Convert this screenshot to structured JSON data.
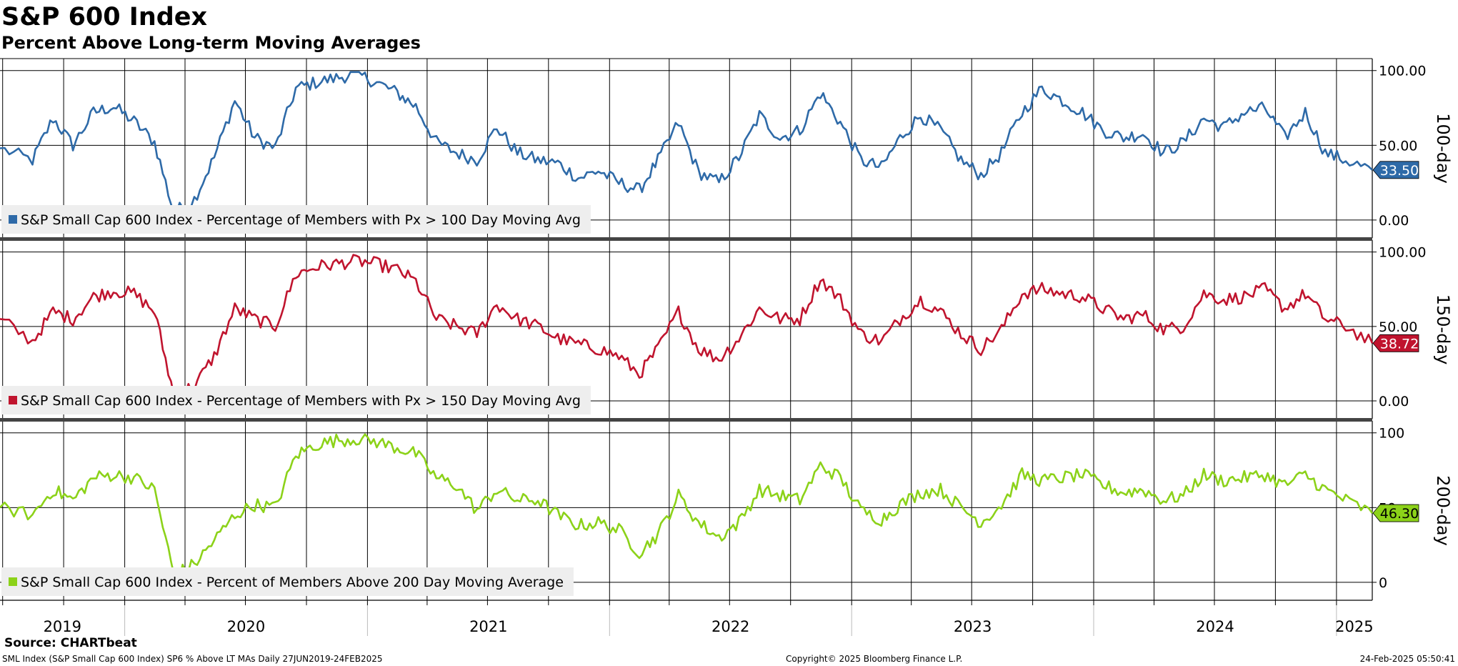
{
  "header": {
    "title": "S&P 600 Index",
    "subtitle": "Percent Above Long-term Moving Averages"
  },
  "footer": {
    "source": "Source: CHARTbeat",
    "security": "SML Index (S&P Small Cap 600 Index) SP6 % Above LT MAs  Daily 27JUN2019-24FEB2025",
    "copyright": "Copyright© 2025 Bloomberg Finance L.P.",
    "timestamp": "24-Feb-2025 05:50:41"
  },
  "chart_data": [
    {
      "type": "line",
      "panel_label": "100-day",
      "ylim": [
        -12,
        108
      ],
      "yticks": [
        "0.00",
        "50.00",
        "100.00"
      ],
      "ytick_values": [
        0,
        50,
        100
      ],
      "grid": true,
      "legend": "bottom-left",
      "last_value_label": "33.50",
      "color": "#2e6aa8",
      "series": [
        {
          "name": "S&P Small Cap 600 Index - Percentage of Members with Px > 100 Day Moving Avg",
          "x": [
            "2019-06",
            "2019-08",
            "2019-09",
            "2019-10",
            "2019-11",
            "2019-12",
            "2020-01",
            "2020-02",
            "2020-03",
            "2020-04",
            "2020-05",
            "2020-06",
            "2020-07",
            "2020-08",
            "2020-09",
            "2020-10",
            "2020-11",
            "2020-12",
            "2021-01",
            "2021-02",
            "2021-03",
            "2021-04",
            "2021-05",
            "2021-06",
            "2021-07",
            "2021-08",
            "2021-09",
            "2021-10",
            "2021-11",
            "2021-12",
            "2022-01",
            "2022-02",
            "2022-03",
            "2022-04",
            "2022-05",
            "2022-06",
            "2022-07",
            "2022-08",
            "2022-09",
            "2022-10",
            "2022-11",
            "2022-12",
            "2023-01",
            "2023-02",
            "2023-03",
            "2023-04",
            "2023-05",
            "2023-06",
            "2023-07",
            "2023-08",
            "2023-09",
            "2023-10",
            "2023-11",
            "2023-12",
            "2024-01",
            "2024-02",
            "2024-03",
            "2024-04",
            "2024-05",
            "2024-06",
            "2024-07",
            "2024-08",
            "2024-09",
            "2024-10",
            "2024-11",
            "2024-12",
            "2025-01",
            "2025-02"
          ],
          "values": [
            48,
            40,
            68,
            50,
            72,
            76,
            66,
            52,
            5,
            14,
            42,
            80,
            55,
            48,
            88,
            92,
            95,
            98,
            92,
            85,
            76,
            52,
            45,
            40,
            62,
            45,
            40,
            38,
            28,
            33,
            25,
            20,
            40,
            65,
            32,
            25,
            42,
            70,
            55,
            60,
            85,
            65,
            40,
            35,
            55,
            70,
            60,
            40,
            30,
            45,
            72,
            88,
            80,
            72,
            60,
            55,
            58,
            45,
            52,
            68,
            62,
            72,
            75,
            55,
            72,
            45,
            40,
            33.5
          ]
        }
      ]
    },
    {
      "type": "line",
      "panel_label": "150-day",
      "ylim": [
        -12,
        108
      ],
      "yticks": [
        "0.00",
        "50.00",
        "100.00"
      ],
      "ytick_values": [
        0,
        50,
        100
      ],
      "grid": true,
      "legend": "bottom-left",
      "last_value_label": "38.72",
      "color": "#c0142e",
      "series": [
        {
          "name": "S&P Small Cap 600 Index - Percentage of Members with Px > 150 Day Moving Avg",
          "x": [
            "2019-06",
            "2019-08",
            "2019-09",
            "2019-10",
            "2019-11",
            "2019-12",
            "2020-01",
            "2020-02",
            "2020-03",
            "2020-04",
            "2020-05",
            "2020-06",
            "2020-07",
            "2020-08",
            "2020-09",
            "2020-10",
            "2020-11",
            "2020-12",
            "2021-01",
            "2021-02",
            "2021-03",
            "2021-04",
            "2021-05",
            "2021-06",
            "2021-07",
            "2021-08",
            "2021-09",
            "2021-10",
            "2021-11",
            "2021-12",
            "2022-01",
            "2022-02",
            "2022-03",
            "2022-04",
            "2022-05",
            "2022-06",
            "2022-07",
            "2022-08",
            "2022-09",
            "2022-10",
            "2022-11",
            "2022-12",
            "2023-01",
            "2023-02",
            "2023-03",
            "2023-04",
            "2023-05",
            "2023-06",
            "2023-07",
            "2023-08",
            "2023-09",
            "2023-10",
            "2023-11",
            "2023-12",
            "2024-01",
            "2024-02",
            "2024-03",
            "2024-04",
            "2024-05",
            "2024-06",
            "2024-07",
            "2024-08",
            "2024-09",
            "2024-10",
            "2024-11",
            "2024-12",
            "2025-01",
            "2025-02"
          ],
          "values": [
            55,
            40,
            60,
            55,
            70,
            74,
            72,
            60,
            4,
            10,
            30,
            62,
            55,
            50,
            85,
            90,
            92,
            94,
            92,
            88,
            80,
            55,
            50,
            45,
            65,
            55,
            50,
            42,
            38,
            35,
            30,
            18,
            35,
            60,
            35,
            28,
            42,
            62,
            55,
            55,
            82,
            68,
            45,
            40,
            55,
            68,
            60,
            45,
            35,
            48,
            72,
            75,
            72,
            70,
            62,
            55,
            58,
            48,
            50,
            72,
            68,
            70,
            75,
            62,
            72,
            55,
            50,
            38.72
          ]
        }
      ]
    },
    {
      "type": "line",
      "panel_label": "200-day",
      "ylim": [
        -12,
        108
      ],
      "yticks": [
        "0",
        "50",
        "100"
      ],
      "ytick_values": [
        0,
        50,
        100
      ],
      "grid": true,
      "legend": "bottom-left",
      "last_value_label": "46.30",
      "color": "#8cd219",
      "series": [
        {
          "name": "S&P Small Cap 600 Index - Percent of Members Above 200 Day Moving Average",
          "x": [
            "2019-06",
            "2019-08",
            "2019-09",
            "2019-10",
            "2019-11",
            "2019-12",
            "2020-01",
            "2020-02",
            "2020-03",
            "2020-04",
            "2020-05",
            "2020-06",
            "2020-07",
            "2020-08",
            "2020-09",
            "2020-10",
            "2020-11",
            "2020-12",
            "2021-01",
            "2021-02",
            "2021-03",
            "2021-04",
            "2021-05",
            "2021-06",
            "2021-07",
            "2021-08",
            "2021-09",
            "2021-10",
            "2021-11",
            "2021-12",
            "2022-01",
            "2022-02",
            "2022-03",
            "2022-04",
            "2022-05",
            "2022-06",
            "2022-07",
            "2022-08",
            "2022-09",
            "2022-10",
            "2022-11",
            "2022-12",
            "2023-01",
            "2023-02",
            "2023-03",
            "2023-04",
            "2023-05",
            "2023-06",
            "2023-07",
            "2023-08",
            "2023-09",
            "2023-10",
            "2023-11",
            "2023-12",
            "2024-01",
            "2024-02",
            "2024-03",
            "2024-04",
            "2024-05",
            "2024-06",
            "2024-07",
            "2024-08",
            "2024-09",
            "2024-10",
            "2024-11",
            "2024-12",
            "2025-01",
            "2025-02"
          ],
          "values": [
            50,
            45,
            62,
            55,
            70,
            72,
            70,
            62,
            5,
            12,
            28,
            45,
            52,
            50,
            85,
            92,
            95,
            96,
            94,
            90,
            86,
            70,
            65,
            48,
            62,
            55,
            55,
            45,
            38,
            40,
            35,
            20,
            32,
            58,
            40,
            30,
            40,
            62,
            58,
            55,
            78,
            70,
            48,
            42,
            52,
            60,
            62,
            50,
            40,
            52,
            72,
            68,
            70,
            72,
            65,
            60,
            62,
            55,
            58,
            72,
            68,
            70,
            72,
            65,
            72,
            62,
            55,
            46.3
          ]
        }
      ]
    }
  ],
  "x_axis": {
    "year_labels": [
      "2019",
      "2020",
      "2021",
      "2022",
      "2023",
      "2024",
      "2025"
    ],
    "start": "2019-06-27",
    "end": "2025-02-24"
  }
}
